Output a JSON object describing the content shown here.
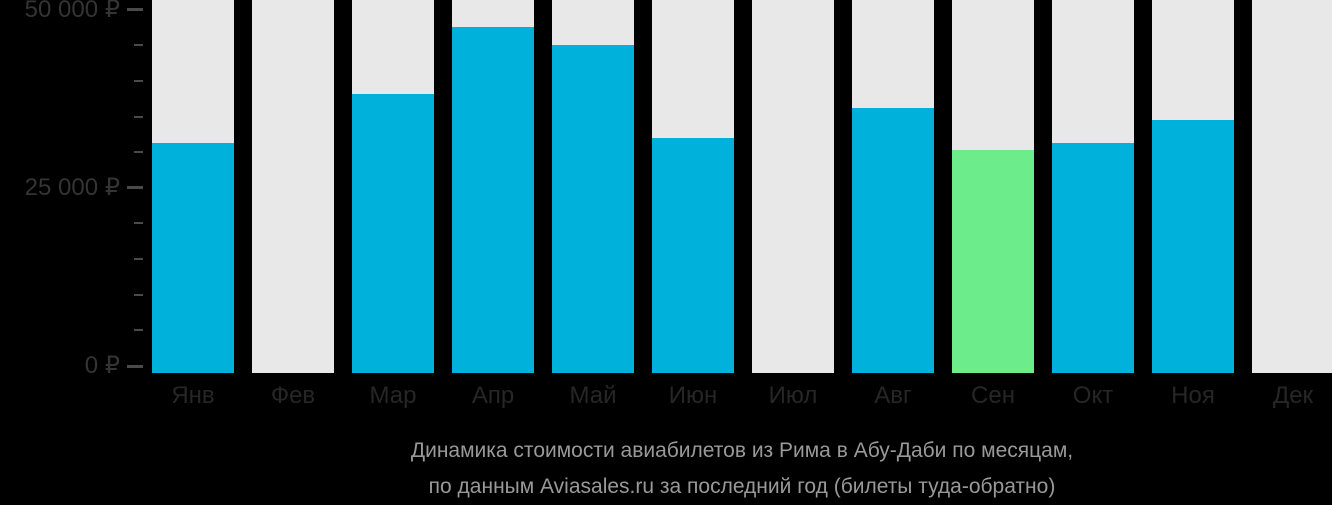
{
  "chart_data": {
    "type": "bar",
    "title": "Динамика стоимости авиабилетов из Рима в Абу-Даби по месяцам,",
    "subtitle": "по данным Aviasales.ru за последний год (билеты туда-обратно)",
    "categories": [
      "Янв",
      "Фев",
      "Мар",
      "Апр",
      "Май",
      "Июн",
      "Июл",
      "Авг",
      "Сен",
      "Окт",
      "Ноя",
      "Дек"
    ],
    "values": [
      31300,
      null,
      38200,
      47500,
      45000,
      32000,
      null,
      36200,
      30300,
      31300,
      34500,
      null
    ],
    "highlighted_category": "Сен",
    "xlabel": "",
    "ylabel": "",
    "ylim": [
      0,
      50000
    ],
    "ytick_step": 5000,
    "ytick_labels": [
      {
        "value": 0,
        "label": "0 ₽"
      },
      {
        "value": 25000,
        "label": "25 000 ₽"
      },
      {
        "value": 50000,
        "label": "50 000 ₽"
      }
    ],
    "currency": "₽",
    "grid": false,
    "legend": "none",
    "missing_data_months": [
      "Фев",
      "Июл",
      "Дек"
    ]
  },
  "colors": {
    "bar": "#00b1dc",
    "bar_highlight": "#6cec8b",
    "column_background": "#e8e8e8",
    "page_background": "#000000",
    "axis_value_label": "#343434",
    "month_label": "#262626",
    "tick": "#4a4a4a",
    "caption": "#999999"
  }
}
